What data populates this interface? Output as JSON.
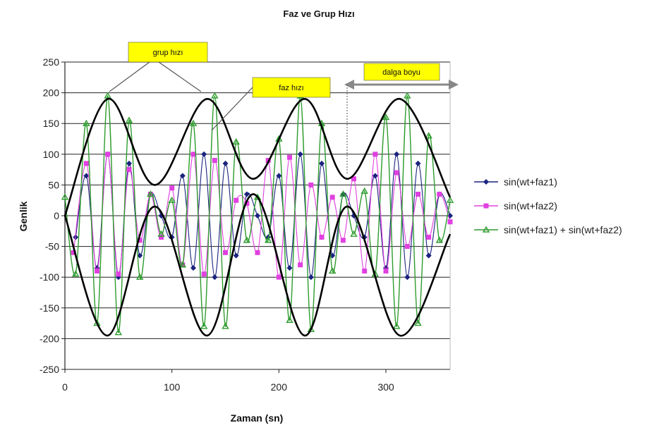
{
  "chart_data": {
    "type": "line",
    "title": "Faz ve Grup Hızı",
    "xlabel": "Zaman (sn)",
    "ylabel": "Genlik",
    "xlim": [
      0,
      360
    ],
    "ylim": [
      -250,
      250
    ],
    "x_ticks": [
      {
        "value": 0,
        "label": "0"
      },
      {
        "value": 100,
        "label": "100"
      },
      {
        "value": 200,
        "label": "200"
      },
      {
        "value": 300,
        "label": "300"
      }
    ],
    "y_ticks": [
      {
        "value": 250,
        "label": "250"
      },
      {
        "value": 200,
        "label": "200"
      },
      {
        "value": 150,
        "label": "150"
      },
      {
        "value": 100,
        "label": "100"
      },
      {
        "value": 50,
        "label": "50"
      },
      {
        "value": 0,
        "label": "0"
      },
      {
        "value": -50,
        "label": "-50"
      },
      {
        "value": -100,
        "label": "-100"
      },
      {
        "value": -150,
        "label": "-150"
      },
      {
        "value": -200,
        "label": "-200"
      },
      {
        "value": -250,
        "label": "-250"
      }
    ],
    "grid": "horizontal",
    "legend_position": "right",
    "series": [
      {
        "name": "sin(wt+faz1)",
        "color": "#1a237e",
        "marker": "diamond",
        "x": [
          10,
          20,
          30,
          40,
          50,
          60,
          70,
          80,
          90,
          100,
          110,
          120,
          130,
          140,
          150,
          160,
          170,
          180,
          190,
          200,
          210,
          220,
          230,
          240,
          250,
          260,
          270,
          280,
          290,
          300,
          310,
          320,
          330,
          340,
          350,
          360
        ],
        "y": [
          -35,
          65,
          -85,
          100,
          -100,
          85,
          -65,
          35,
          0,
          -35,
          65,
          -85,
          100,
          -100,
          85,
          -65,
          35,
          0,
          -35,
          65,
          -85,
          100,
          -100,
          85,
          -65,
          35,
          0,
          -35,
          65,
          -85,
          100,
          -100,
          85,
          -65,
          35,
          0
        ]
      },
      {
        "name": "sin(wt+faz2)",
        "color": "#e040e0",
        "marker": "square",
        "x": [
          8,
          20,
          30,
          40,
          50,
          60,
          70,
          80,
          90,
          100,
          110,
          120,
          130,
          140,
          150,
          160,
          170,
          180,
          190,
          200,
          210,
          220,
          230,
          240,
          250,
          260,
          270,
          280,
          290,
          300,
          310,
          320,
          330,
          340,
          350,
          360
        ],
        "y": [
          -60,
          85,
          -90,
          100,
          -95,
          75,
          -40,
          35,
          -35,
          45,
          -80,
          100,
          -95,
          90,
          -60,
          25,
          20,
          -60,
          90,
          -100,
          95,
          -80,
          50,
          -35,
          30,
          -40,
          60,
          -90,
          100,
          -90,
          70,
          -50,
          35,
          -35,
          35,
          -10
        ]
      },
      {
        "name": "sin(wt+faz1) + sin(wt+faz2)",
        "color": "#2e9c2e",
        "marker": "triangle",
        "x": [
          0,
          10,
          20,
          30,
          40,
          50,
          60,
          70,
          80,
          90,
          100,
          110,
          120,
          130,
          140,
          150,
          160,
          170,
          180,
          190,
          200,
          210,
          220,
          230,
          240,
          250,
          260,
          270,
          280,
          290,
          300,
          310,
          320,
          330,
          340,
          350,
          360
        ],
        "y": [
          30,
          -95,
          150,
          -175,
          195,
          -190,
          155,
          -100,
          35,
          -30,
          25,
          -80,
          150,
          -180,
          195,
          -180,
          120,
          -40,
          30,
          -40,
          125,
          -170,
          195,
          -185,
          150,
          -90,
          35,
          -30,
          40,
          -95,
          160,
          -180,
          195,
          -175,
          130,
          -40,
          25
        ]
      }
    ],
    "envelope": {
      "name": "",
      "color": "#000000",
      "upper_x": [
        0,
        40,
        84,
        133,
        176,
        224,
        264,
        313,
        360
      ],
      "upper_y": [
        0,
        190,
        50,
        190,
        60,
        190,
        60,
        190,
        30
      ],
      "lower_x": [
        0,
        40,
        84,
        133,
        176,
        224,
        264,
        313,
        360
      ],
      "lower_y": [
        0,
        -195,
        15,
        -195,
        35,
        -195,
        15,
        -195,
        -30
      ]
    },
    "annotations": [
      {
        "text": "grup hızı",
        "color": "#ffff00"
      },
      {
        "text": "faz hızı",
        "color": "#ffff00"
      },
      {
        "text": "dalga boyu",
        "color": "#ffff00"
      }
    ]
  }
}
